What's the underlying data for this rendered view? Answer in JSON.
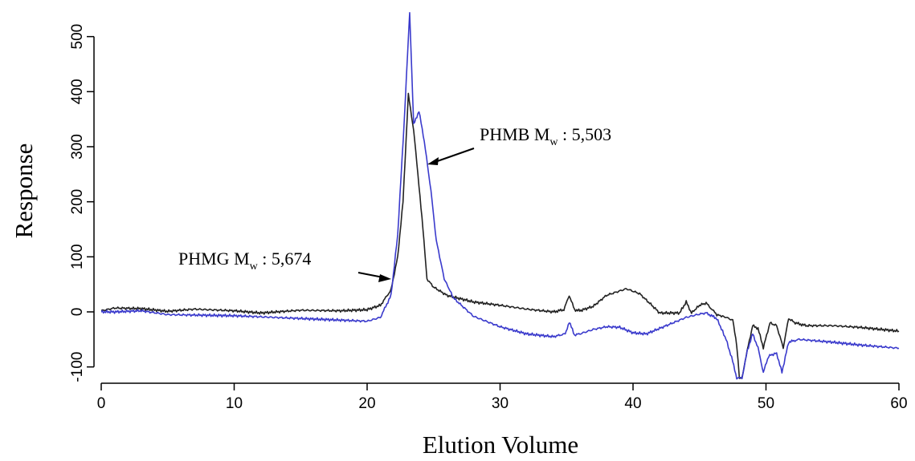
{
  "chart_data": {
    "type": "line",
    "xlabel": "Elution Volume",
    "ylabel": "Response",
    "xlim": [
      0,
      60
    ],
    "ylim": [
      -120,
      510
    ],
    "x_ticks": [
      "0",
      "10",
      "20",
      "30",
      "40",
      "50",
      "60"
    ],
    "y_ticks": [
      "-100",
      "0",
      "100",
      "200",
      "300",
      "400",
      "500"
    ],
    "grid": false,
    "legend": "none",
    "series": [
      {
        "color": "#222222",
        "points": [
          [
            0,
            2
          ],
          [
            1,
            7
          ],
          [
            3,
            6
          ],
          [
            5,
            1
          ],
          [
            7,
            5
          ],
          [
            10,
            2
          ],
          [
            12,
            -2
          ],
          [
            15,
            3
          ],
          [
            18,
            2
          ],
          [
            20,
            4
          ],
          [
            21,
            12
          ],
          [
            21.8,
            40
          ],
          [
            22.3,
            100
          ],
          [
            22.7,
            200
          ],
          [
            23.1,
            395
          ],
          [
            23.5,
            330
          ],
          [
            23.9,
            230
          ],
          [
            24.2,
            150
          ],
          [
            24.5,
            60
          ],
          [
            25,
            45
          ],
          [
            26,
            30
          ],
          [
            28,
            18
          ],
          [
            30,
            12
          ],
          [
            32,
            5
          ],
          [
            34,
            0
          ],
          [
            34.8,
            4
          ],
          [
            35.2,
            30
          ],
          [
            35.6,
            4
          ],
          [
            36,
            2
          ],
          [
            37,
            10
          ],
          [
            38,
            30
          ],
          [
            39.5,
            42
          ],
          [
            40.5,
            33
          ],
          [
            41.5,
            10
          ],
          [
            42,
            -2
          ],
          [
            43.5,
            -2
          ],
          [
            44,
            18
          ],
          [
            44.4,
            -2
          ],
          [
            45,
            12
          ],
          [
            45.5,
            16
          ],
          [
            46.3,
            -5
          ],
          [
            47,
            -10
          ],
          [
            47.5,
            -15
          ],
          [
            47.8,
            -60
          ],
          [
            48,
            -120
          ],
          [
            48.2,
            -120
          ],
          [
            48.5,
            -80
          ],
          [
            49,
            -25
          ],
          [
            49.4,
            -30
          ],
          [
            49.8,
            -65
          ],
          [
            50.3,
            -20
          ],
          [
            50.8,
            -25
          ],
          [
            51.3,
            -65
          ],
          [
            51.7,
            -12
          ],
          [
            52.2,
            -20
          ],
          [
            53,
            -25
          ],
          [
            55,
            -25
          ],
          [
            57,
            -28
          ],
          [
            60,
            -35
          ]
        ]
      },
      {
        "color": "#3a3acc",
        "points": [
          [
            0,
            0
          ],
          [
            1,
            0
          ],
          [
            3,
            2
          ],
          [
            5,
            -5
          ],
          [
            10,
            -7
          ],
          [
            15,
            -12
          ],
          [
            18,
            -15
          ],
          [
            20,
            -17
          ],
          [
            21,
            -10
          ],
          [
            21.8,
            30
          ],
          [
            22.3,
            140
          ],
          [
            22.8,
            350
          ],
          [
            23.2,
            545
          ],
          [
            23.5,
            340
          ],
          [
            23.9,
            365
          ],
          [
            24.3,
            310
          ],
          [
            24.8,
            220
          ],
          [
            25.2,
            130
          ],
          [
            25.8,
            60
          ],
          [
            26.5,
            25
          ],
          [
            28,
            -8
          ],
          [
            30,
            -27
          ],
          [
            32,
            -40
          ],
          [
            34,
            -45
          ],
          [
            34.9,
            -40
          ],
          [
            35.2,
            -18
          ],
          [
            35.6,
            -42
          ],
          [
            36,
            -40
          ],
          [
            37,
            -32
          ],
          [
            38,
            -27
          ],
          [
            39,
            -28
          ],
          [
            40,
            -38
          ],
          [
            41,
            -40
          ],
          [
            42,
            -30
          ],
          [
            43,
            -20
          ],
          [
            44,
            -10
          ],
          [
            45,
            -4
          ],
          [
            45.5,
            -2
          ],
          [
            46.3,
            -12
          ],
          [
            47,
            -50
          ],
          [
            47.5,
            -90
          ],
          [
            47.8,
            -120
          ],
          [
            48.2,
            -120
          ],
          [
            48.6,
            -70
          ],
          [
            49,
            -40
          ],
          [
            49.4,
            -65
          ],
          [
            49.8,
            -110
          ],
          [
            50.2,
            -80
          ],
          [
            50.8,
            -75
          ],
          [
            51.2,
            -110
          ],
          [
            51.7,
            -55
          ],
          [
            52.5,
            -50
          ],
          [
            55,
            -55
          ],
          [
            57,
            -60
          ],
          [
            60,
            -66
          ]
        ]
      }
    ],
    "annotations": [
      {
        "main": "PHMB M",
        "sub": "w",
        "suffix": " : 5,503"
      },
      {
        "main": "PHMG M",
        "sub": "w",
        "suffix": " : 5,674"
      }
    ]
  }
}
